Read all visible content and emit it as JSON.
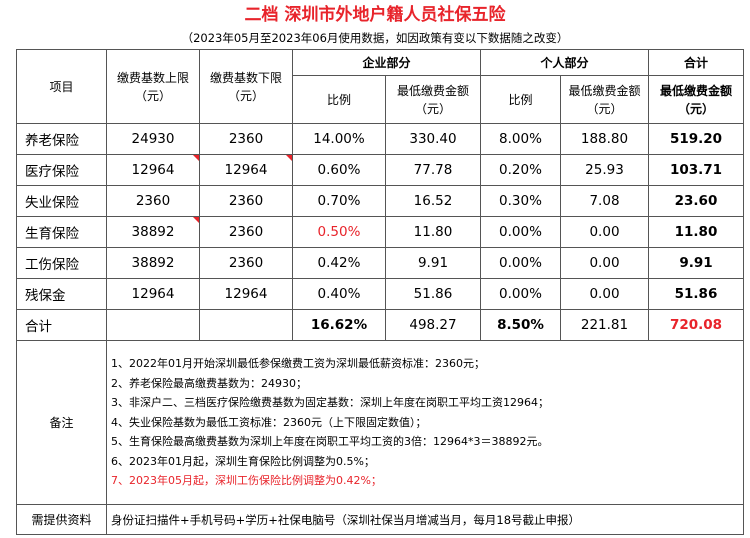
{
  "title": "二档 深圳市外地户籍人员社保五险",
  "subtitle": "（2023年05月至2023年06月使用数据，如因政策有变以下数据随之改变）",
  "headers": {
    "item": "项目",
    "upper": "缴费基数上限（元）",
    "lower": "缴费基数下限（元）",
    "company": "企业部分",
    "personal": "个人部分",
    "total": "合计",
    "rate": "比例",
    "min_amount": "最低缴费金额（元）",
    "total_min": "最低缴费金额（元）"
  },
  "rows": [
    {
      "name": "养老保险",
      "upper": "24930",
      "lower": "2360",
      "c_rate": "14.00%",
      "c_amt": "330.40",
      "p_rate": "8.00%",
      "p_amt": "188.80",
      "total": "519.20"
    },
    {
      "name": "医疗保险",
      "upper": "12964",
      "lower": "12964",
      "c_rate": "0.60%",
      "c_amt": "77.78",
      "p_rate": "0.20%",
      "p_amt": "25.93",
      "total": "103.71"
    },
    {
      "name": "失业保险",
      "upper": "2360",
      "lower": "2360",
      "c_rate": "0.70%",
      "c_amt": "16.52",
      "p_rate": "0.30%",
      "p_amt": "7.08",
      "total": "23.60"
    },
    {
      "name": "生育保险",
      "upper": "38892",
      "lower": "2360",
      "c_rate": "0.50%",
      "c_amt": "11.80",
      "p_rate": "0.00%",
      "p_amt": "0.00",
      "total": "11.80"
    },
    {
      "name": "工伤保险",
      "upper": "38892",
      "lower": "2360",
      "c_rate": "0.42%",
      "c_amt": "9.91",
      "p_rate": "0.00%",
      "p_amt": "0.00",
      "total": "9.91"
    },
    {
      "name": "残保金",
      "upper": "12964",
      "lower": "12964",
      "c_rate": "0.40%",
      "c_amt": "51.86",
      "p_rate": "0.00%",
      "p_amt": "0.00",
      "total": "51.86"
    }
  ],
  "sum": {
    "label": "合计",
    "c_rate": "16.62%",
    "c_amt": "498.27",
    "p_rate": "8.50%",
    "p_amt": "221.81",
    "total": "720.08"
  },
  "notes_label": "备注",
  "notes": [
    "1、2022年01月开始深圳最低参保缴费工资为深圳最低薪资标准：2360元；",
    "2、养老保险最高缴费基数为：24930；",
    "3、非深户二、三档医疗保险缴费基数为固定基数：深圳上年度在岗职工平均工资12964；",
    "4、失业保险基数为最低工资标准：2360元（上下限固定数值）；",
    "5、生育保险最高缴费基数为深圳上年度在岗职工平均工资的3倍：12964*3＝38892元。",
    "6、2023年01月起，深圳生育保险比例调整为0.5%；",
    "7、2023年05月起，深圳工伤保险比例调整为0.42%；"
  ],
  "required_label": "需提供资料",
  "required_text": "身份证扫描件+手机号码+学历+社保电脑号（深圳社保当月增减当月，每月18号截止申报）",
  "colors": {
    "red": "#e8242b"
  }
}
